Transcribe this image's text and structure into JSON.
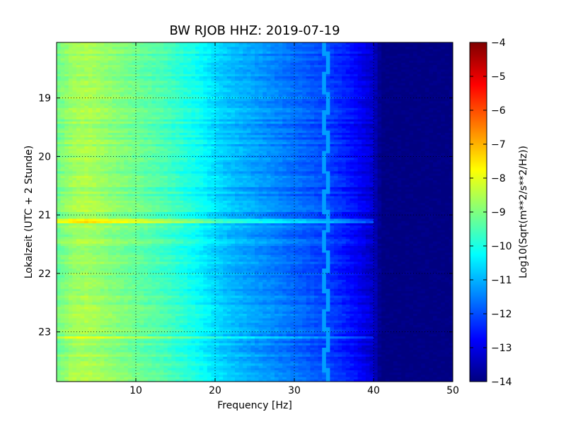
{
  "chart_data": {
    "type": "heatmap",
    "title": "BW RJOB HHZ: 2019-07-19",
    "xlabel": "Frequency [Hz]",
    "ylabel": "Lokalzeit (UTC + 2 Stunde)",
    "xlim": [
      0,
      50
    ],
    "ylim": [
      18.05,
      23.85
    ],
    "y_inverted": true,
    "xticks": [
      10,
      20,
      30,
      40,
      50
    ],
    "yticks": [
      19,
      20,
      21,
      22,
      23
    ],
    "grid": true,
    "colormap": "jet",
    "colorbar": {
      "label": "Log10(Sqrt(m**2/s**2/Hz))",
      "range": [
        -14,
        -4
      ],
      "ticks": [
        -4,
        -5,
        -6,
        -7,
        -8,
        -9,
        -10,
        -11,
        -12,
        -13,
        -14
      ]
    },
    "spectral_profile": {
      "frequency_hz": [
        0,
        2,
        4,
        6,
        8,
        10,
        12,
        14,
        16,
        18,
        20,
        22,
        24,
        26,
        28,
        30,
        32,
        34,
        36,
        38,
        40,
        41,
        45,
        50
      ],
      "level": [
        -9.2,
        -8.7,
        -8.6,
        -8.8,
        -9.0,
        -9.2,
        -9.4,
        -9.6,
        -9.9,
        -10.2,
        -10.6,
        -10.9,
        -11.1,
        -11.3,
        -11.5,
        -11.7,
        -11.9,
        -12.1,
        -12.4,
        -12.8,
        -13.3,
        -14.0,
        -14.0,
        -14.0
      ]
    },
    "narrowband_line": {
      "frequency_hz": 34,
      "level": -11.2
    },
    "notable_events": [
      {
        "time_h": 21.1,
        "level_offset": 1.0
      },
      {
        "time_h": 23.1,
        "level_offset": 0.6
      },
      {
        "time_h": 19.75,
        "level_offset": 0.3
      }
    ]
  }
}
